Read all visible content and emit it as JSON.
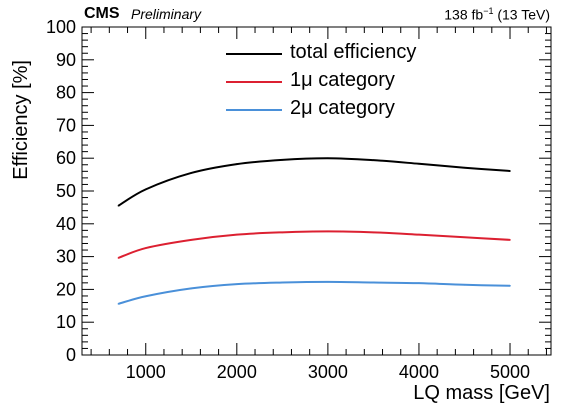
{
  "header": {
    "experiment": "CMS",
    "status": "Preliminary",
    "lumi_value": "138 fb",
    "lumi_exp": "−1",
    "lumi_energy": " (13 TeV)"
  },
  "chart_data": {
    "type": "line",
    "xlabel": "LQ mass [GeV]",
    "ylabel": "Efficiency [%]",
    "xlim": [
      300,
      5450
    ],
    "ylim": [
      0,
      100
    ],
    "x_ticks": [
      1000,
      2000,
      3000,
      4000,
      5000
    ],
    "y_ticks": [
      0,
      10,
      20,
      30,
      40,
      50,
      60,
      70,
      80,
      90,
      100
    ],
    "grid": false,
    "legend_placement": "top-center",
    "series": [
      {
        "name": "total efficiency",
        "color": "#000000",
        "x": [
          700,
          1000,
          1500,
          2000,
          2500,
          3000,
          3500,
          4000,
          4500,
          5000
        ],
        "y": [
          45.5,
          50.5,
          55.5,
          58.2,
          59.5,
          60.0,
          59.4,
          58.3,
          57.1,
          56.1
        ]
      },
      {
        "name": "1μ category",
        "color": "#dc2031",
        "x": [
          700,
          1000,
          1500,
          2000,
          2500,
          3000,
          3500,
          4000,
          4500,
          5000
        ],
        "y": [
          29.6,
          32.6,
          35.1,
          36.7,
          37.4,
          37.7,
          37.4,
          36.7,
          35.9,
          35.1
        ]
      },
      {
        "name": "2μ category",
        "color": "#4a90d9",
        "x": [
          700,
          1000,
          1500,
          2000,
          2500,
          3000,
          3500,
          4000,
          4500,
          5000
        ],
        "y": [
          15.6,
          17.9,
          20.3,
          21.6,
          22.1,
          22.3,
          22.1,
          21.9,
          21.4,
          21.1
        ]
      }
    ]
  }
}
